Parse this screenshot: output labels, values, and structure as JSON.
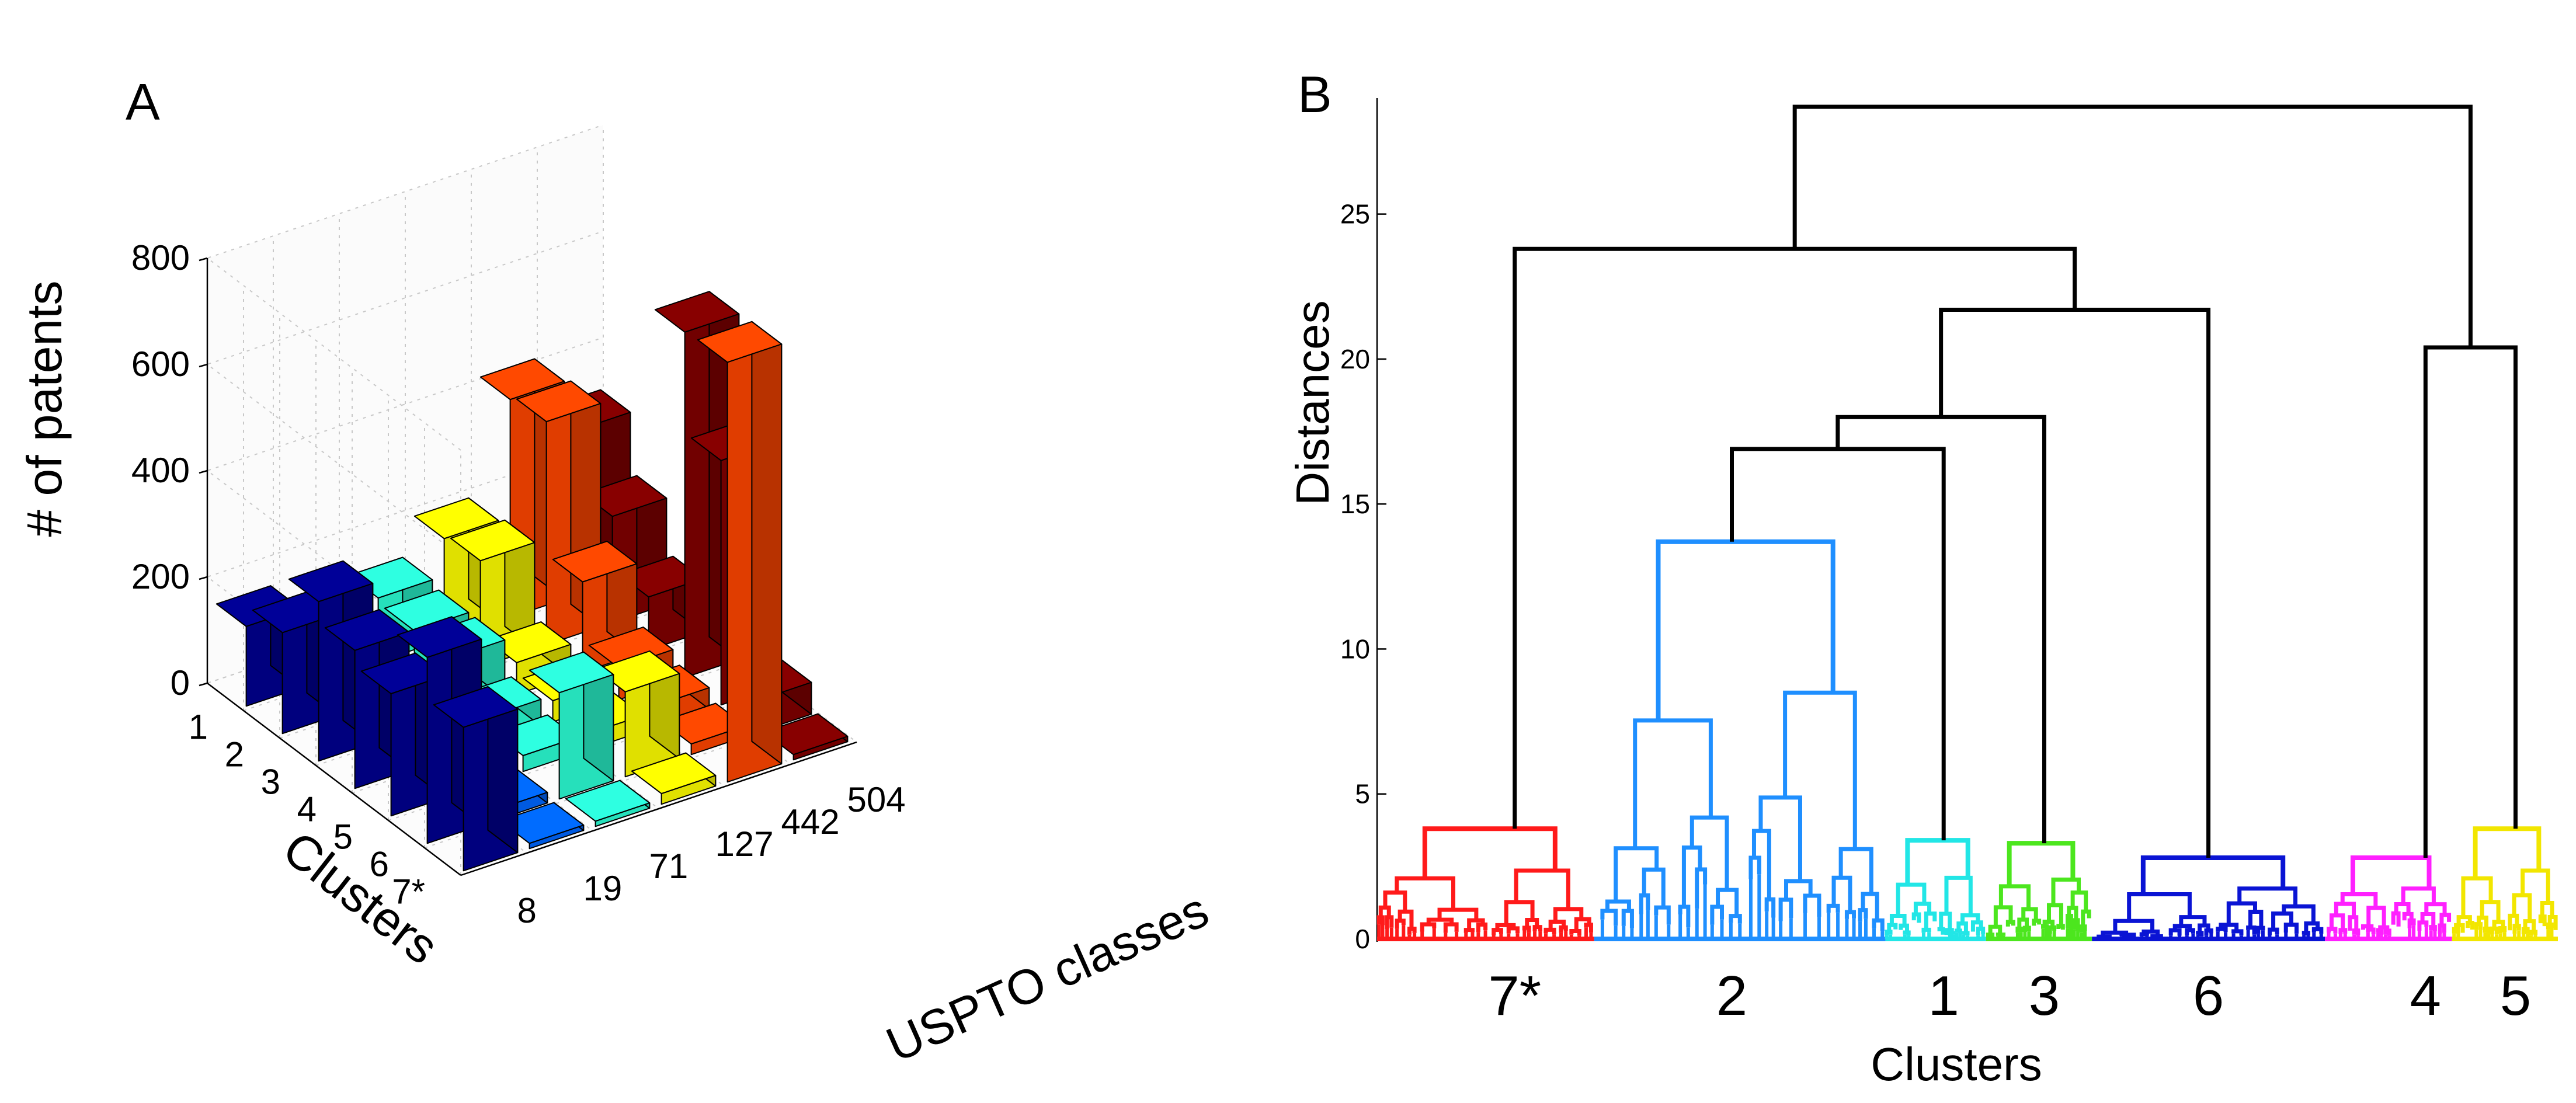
{
  "panel_a_label": "A",
  "panel_b_label": "B",
  "chart_data": [
    {
      "type": "bar3d",
      "title": "",
      "zlabel": "# of patents",
      "ylabel": "Clusters",
      "xlabel": "USPTO classes",
      "zlim": [
        0,
        800
      ],
      "z_ticks": [
        "0",
        "200",
        "400",
        "600",
        "800"
      ],
      "clusters": [
        "1",
        "2",
        "3",
        "4",
        "5",
        "6",
        "7*"
      ],
      "classes": [
        "8",
        "19",
        "71",
        "127",
        "442",
        "504"
      ],
      "class_colors": [
        "#00008f",
        "#0066ff",
        "#2bffd4",
        "#ffff00",
        "#ff4500",
        "#800000"
      ],
      "values": [
        [
          150,
          100,
          120,
          190,
          410,
          310
        ],
        [
          190,
          90,
          110,
          200,
          420,
          200
        ],
        [
          300,
          80,
          110,
          60,
          170,
          100
        ],
        [
          260,
          40,
          50,
          40,
          60,
          650
        ],
        [
          230,
          20,
          30,
          30,
          40,
          460
        ],
        [
          350,
          20,
          200,
          160,
          20,
          60
        ],
        [
          270,
          10,
          10,
          20,
          790,
          10
        ]
      ]
    },
    {
      "type": "dendrogram",
      "ylabel": "Distances",
      "xlabel": "Clusters",
      "ylim": [
        0,
        29
      ],
      "y_ticks": [
        0,
        5,
        10,
        15,
        20,
        25
      ],
      "cluster_labels": [
        {
          "label": "7*",
          "x": 26
        },
        {
          "label": "2",
          "x": 67
        },
        {
          "label": "1",
          "x": 107
        },
        {
          "label": "3",
          "x": 126
        },
        {
          "label": "6",
          "x": 157
        },
        {
          "label": "4",
          "x": 198
        },
        {
          "label": "5",
          "x": 215
        }
      ],
      "x_range": [
        0,
        223
      ],
      "groups": [
        {
          "cluster": "7*",
          "color": "#ff1a1a",
          "x_range": [
            0,
            41
          ],
          "top_x": 26,
          "height": 3.8
        },
        {
          "cluster": "2",
          "color": "#1f8fff",
          "x_range": [
            41,
            96
          ],
          "top_x": 67,
          "height": 13.7
        },
        {
          "cluster": "1",
          "color": "#22e6e6",
          "x_range": [
            96,
            115
          ],
          "top_x": 107,
          "height": 3.4
        },
        {
          "cluster": "3",
          "color": "#4ce61e",
          "x_range": [
            115,
            135
          ],
          "top_x": 126,
          "height": 3.3
        },
        {
          "cluster": "6",
          "color": "#0a14d4",
          "x_range": [
            135,
            179
          ],
          "top_x": 157,
          "height": 2.8
        },
        {
          "cluster": "4",
          "color": "#ff20ff",
          "x_range": [
            179,
            203
          ],
          "top_x": 198,
          "height": 2.8
        },
        {
          "cluster": "5",
          "color": "#f2e600",
          "x_range": [
            203,
            223
          ],
          "top_x": 215,
          "height": 3.8
        }
      ],
      "merges": [
        {
          "left_x": 67,
          "left_h": 13.7,
          "right_x": 107,
          "right_h": 3.4,
          "height": 16.9
        },
        {
          "left_x": 87,
          "left_h": 16.9,
          "right_x": 126,
          "right_h": 3.3,
          "height": 18.0
        },
        {
          "left_x": 106.5,
          "left_h": 18.0,
          "right_x": 157,
          "right_h": 2.8,
          "height": 21.7
        },
        {
          "left_x": 26,
          "left_h": 3.8,
          "right_x": 131.75,
          "right_h": 21.7,
          "height": 23.8
        },
        {
          "left_x": 198,
          "left_h": 2.8,
          "right_x": 215,
          "right_h": 3.8,
          "height": 20.4
        },
        {
          "left_x": 78.875,
          "left_h": 23.8,
          "right_x": 206.5,
          "right_h": 20.4,
          "height": 28.7
        }
      ]
    }
  ]
}
